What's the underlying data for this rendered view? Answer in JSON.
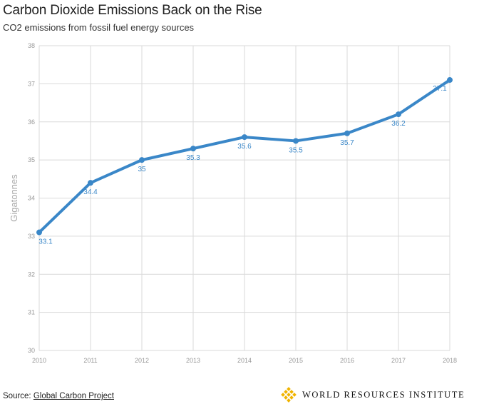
{
  "title": "Carbon Dioxide Emissions Back on the Rise",
  "subtitle": "CO2 emissions from fossil fuel energy sources",
  "source": {
    "label": "Source:",
    "link_text": "Global Carbon Project"
  },
  "brand": {
    "name": "WORLD RESOURCES INSTITUTE",
    "logo_icon": "wri-diamond-logo-icon",
    "logo_color": "#f0b400"
  },
  "chart_data": {
    "type": "line",
    "title": "Carbon Dioxide Emissions Back on the Rise",
    "subtitle": "CO2 emissions from fossil fuel energy sources",
    "xlabel": "",
    "ylabel": "Gigatonnes",
    "x": [
      "2010",
      "2011",
      "2012",
      "2013",
      "2014",
      "2015",
      "2016",
      "2017",
      "2018"
    ],
    "series": [
      {
        "values": [
          33.1,
          34.4,
          35,
          35.3,
          35.6,
          35.5,
          35.7,
          36.2,
          37.1
        ],
        "labels": [
          "33.1",
          "34.4",
          "35",
          "35.3",
          "35.6",
          "35.5",
          "35.7",
          "36.2",
          "37.1"
        ],
        "color": "#3a87c8"
      }
    ],
    "ylim": [
      30,
      38
    ],
    "yticks": [
      "30",
      "31",
      "32",
      "33",
      "34",
      "35",
      "36",
      "37",
      "38"
    ],
    "grid": true,
    "legend": "none"
  }
}
